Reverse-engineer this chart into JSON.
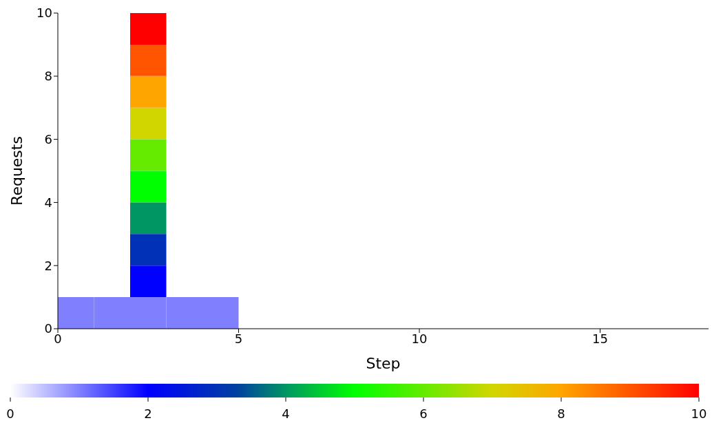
{
  "chart_data": {
    "type": "heatmap",
    "xlabel": "Step",
    "ylabel": "Requests",
    "x": [
      0.5,
      1.5,
      2.5,
      3.5,
      4.5
    ],
    "y": [
      9.5,
      8.5,
      7.5,
      6.5,
      5.5,
      4.5,
      3.5,
      2.5,
      1.5,
      0.5
    ],
    "cells": [
      [
        null,
        null,
        10,
        null,
        null
      ],
      [
        null,
        null,
        9,
        null,
        null
      ],
      [
        null,
        null,
        8,
        null,
        null
      ],
      [
        null,
        null,
        7,
        null,
        null
      ],
      [
        null,
        null,
        6,
        null,
        null
      ],
      [
        null,
        null,
        5,
        null,
        null
      ],
      [
        null,
        null,
        4,
        null,
        null
      ],
      [
        null,
        null,
        3,
        null,
        null
      ],
      [
        null,
        null,
        2,
        null,
        null
      ],
      [
        1,
        1,
        1,
        1,
        1
      ]
    ],
    "xlim": [
      0,
      18
    ],
    "xticks": [
      0,
      5,
      10,
      15
    ],
    "ylim": [
      0,
      10
    ],
    "yticks": [
      0,
      2,
      4,
      6,
      8,
      10
    ],
    "clim": [
      0,
      10
    ],
    "cticks": [
      0,
      2,
      4,
      6,
      8,
      10
    ]
  }
}
